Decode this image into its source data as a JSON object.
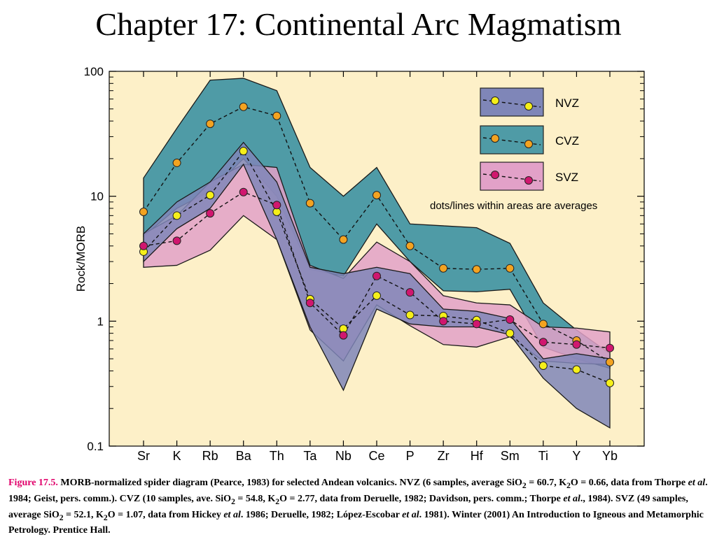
{
  "title": "Chapter 17: Continental Arc Magmatism",
  "chart_data": {
    "type": "line",
    "y_scale": "log",
    "ylim": [
      0.1,
      100
    ],
    "y_ticks": [
      "100",
      "10",
      "1",
      "0.1"
    ],
    "ylabel": "Rock/MORB",
    "categories": [
      "Sr",
      "K",
      "Rb",
      "Ba",
      "Th",
      "Ta",
      "Nb",
      "Ce",
      "P",
      "Zr",
      "Hf",
      "Sm",
      "Ti",
      "Y",
      "Yb"
    ],
    "background": "#fdf0c8",
    "series": [
      {
        "name": "NVZ",
        "avg": [
          3.6,
          7.0,
          10.2,
          23.0,
          7.5,
          1.5,
          0.87,
          1.6,
          1.12,
          1.1,
          1.02,
          0.8,
          0.44,
          0.41,
          0.32
        ],
        "upper": [
          5.0,
          9.0,
          13.0,
          27.0,
          13.0,
          2.7,
          2.4,
          2.7,
          2.4,
          1.25,
          1.2,
          1.05,
          0.5,
          0.55,
          0.5
        ],
        "lower": [
          3.0,
          5.5,
          8.0,
          18.0,
          4.5,
          0.9,
          0.28,
          1.25,
          0.95,
          0.9,
          0.9,
          0.78,
          0.35,
          0.2,
          0.14
        ],
        "fill": "#7f86b8",
        "marker": "#f5ef1a"
      },
      {
        "name": "CVZ",
        "avg": [
          7.5,
          18.5,
          38.0,
          52.0,
          44.0,
          8.8,
          4.5,
          10.2,
          4.0,
          2.65,
          2.6,
          2.65,
          0.95,
          0.7,
          0.47
        ],
        "upper": [
          14.0,
          35.0,
          85.0,
          88.0,
          70.0,
          17.0,
          10.0,
          17.0,
          6.0,
          5.8,
          5.6,
          4.2,
          1.4,
          0.85,
          0.55
        ],
        "lower": [
          4.8,
          8.0,
          11.0,
          20.0,
          10.0,
          2.6,
          2.3,
          6.0,
          3.0,
          1.75,
          1.72,
          1.8,
          0.62,
          0.5,
          0.42
        ],
        "fill": "#4f9ba6",
        "marker": "#f3a321"
      },
      {
        "name": "SVZ",
        "avg": [
          4.0,
          4.4,
          7.3,
          10.8,
          8.5,
          1.4,
          0.77,
          2.3,
          1.7,
          1.0,
          0.95,
          1.03,
          0.68,
          0.65,
          0.61
        ],
        "upper": [
          5.0,
          7.0,
          13.0,
          18.0,
          17.0,
          2.8,
          2.2,
          4.3,
          3.0,
          1.6,
          1.4,
          1.35,
          0.9,
          0.88,
          0.82
        ],
        "lower": [
          2.7,
          2.8,
          3.7,
          7.0,
          4.5,
          0.85,
          0.48,
          1.35,
          0.92,
          0.65,
          0.62,
          0.75,
          0.48,
          0.46,
          0.45
        ],
        "fill": "#e2a1c8",
        "marker": "#d0176f"
      }
    ],
    "legend": {
      "placement": "top-right",
      "entries": [
        "NVZ",
        "CVZ",
        "SVZ"
      ],
      "note": "dots/lines within areas are averages"
    }
  },
  "caption": {
    "figure_label": "Figure 17.5.",
    "t1": " MORB-normalized spider diagram (Pearce, 1983) for selected Andean volcanics. NVZ (6 samples, average SiO",
    "sub2": "2",
    "t2": " = 60.7, K",
    "t3": "O = 0.66, data from Thorpe ",
    "etal": "et al",
    "t4": ". 1984; Geist, pers. comm.). CVZ (10 samples, ave. SiO",
    "t5": " = 54.8, K",
    "t6": "O = 2.77, data from Deruelle, 1982; Davidson, pers. comm.; Thorpe ",
    "t7": "., 1984). SVZ (49 samples, average SiO",
    "t8": " = 52.1, K",
    "t9": "O = 1.07, data from Hickey ",
    "t10": ". 1986; Deruelle, 1982; López-Escobar ",
    "t11": ". 1981). Winter (2001) An Introduction to Igneous and Metamorphic Petrology. Prentice Hall."
  }
}
